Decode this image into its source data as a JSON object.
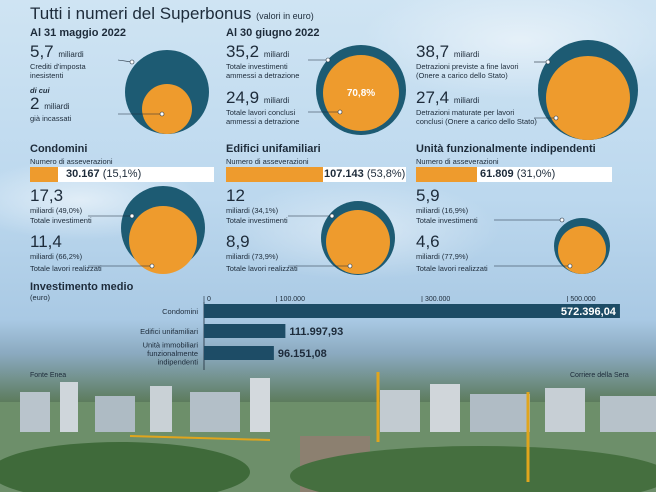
{
  "title": "Tutti i numeri del Superbonus",
  "title_note": "(valori in euro)",
  "colors": {
    "teal": "#1d5b73",
    "orange": "#ee9b2d",
    "dark_blue": "#1d4c66"
  },
  "top": {
    "may": {
      "heading": "Al 31 maggio 2022",
      "a_value": "5,7",
      "a_unit": "miliardi",
      "a_label_1": "Crediti d'imposta",
      "a_label_2": "inesistenti",
      "sub": "di cui",
      "b_value": "2",
      "b_unit": "miliardi",
      "b_label": "già incassati"
    },
    "june": {
      "heading": "Al 30 giugno 2022",
      "a_value": "35,2",
      "a_unit": "miliardi",
      "a_label_1": "Totale investimenti",
      "a_label_2": "ammessi a detrazione",
      "b_value": "24,9",
      "b_unit": "miliardi",
      "b_label_1": "Totale lavori conclusi",
      "b_label_2": "ammessi a detrazione",
      "percent": "70,8%"
    },
    "detr": {
      "a_value": "38,7",
      "a_unit": "miliardi",
      "a_label_1": "Detrazioni previste a fine lavori",
      "a_label_2": "(Onere a carico dello Stato)",
      "b_value": "27,4",
      "b_unit": "miliardi",
      "b_label_1": "Detrazioni maturate per lavori",
      "b_label_2": "conclusi (Onere a carico dello Stato)"
    }
  },
  "sections": [
    {
      "heading": "Condomini",
      "ass_label": "Numero di asseverazioni",
      "ass_value": "30.167",
      "ass_pct": "(15,1%)",
      "ass_frac": 0.151,
      "inv_value": "17,3",
      "inv_unit": "miliardi (49,0%)",
      "inv_label": "Totale investimenti",
      "lav_value": "11,4",
      "lav_unit": "miliardi (66,2%)",
      "lav_label": "Totale lavori realizzati"
    },
    {
      "heading": "Edifici unifamiliari",
      "ass_label": "Numero di asseverazioni",
      "ass_value": "107.143",
      "ass_pct": "(53,8%)",
      "ass_frac": 0.538,
      "inv_value": "12",
      "inv_unit": "miliardi (34,1%)",
      "inv_label": "Totale investimenti",
      "lav_value": "8,9",
      "lav_unit": "miliardi (73,9%)",
      "lav_label": "Totale lavori realizzati"
    },
    {
      "heading": "Unità funzionalmente indipendenti",
      "ass_label": "Numero di asseverazioni",
      "ass_value": "61.809",
      "ass_pct": "(31,0%)",
      "ass_frac": 0.31,
      "inv_value": "5,9",
      "inv_unit": "miliardi (16,9%)",
      "inv_label": "Totale investimenti",
      "lav_value": "4,6",
      "lav_unit": "miliardi (77,9%)",
      "lav_label": "Totale lavori realizzati"
    }
  ],
  "chart_data": {
    "type": "bar",
    "title": "Investimento medio",
    "ylabel": "(euro)",
    "categories": [
      "Condomini",
      "Edifici unifamiliari",
      "Unità immobiliari funzionalmente indipendenti"
    ],
    "category_lines": [
      [
        "Condomini"
      ],
      [
        "Edifici unifamiliari"
      ],
      [
        "Unità immobiliari",
        "funzionalmente",
        "indipendenti"
      ]
    ],
    "values": [
      572396.04,
      111997.93,
      96151.08
    ],
    "value_labels": [
      "572.396,04",
      "111.997,93",
      "96.151,08"
    ],
    "xlim": [
      0,
      600000
    ],
    "ticks": [
      0,
      100000,
      300000,
      500000
    ],
    "tick_labels": [
      "0",
      "100.000",
      "300.000",
      "500.000"
    ],
    "grid": false,
    "orientation": "horizontal"
  },
  "sources": {
    "left": "Fonte Enea",
    "right": "Corriere della Sera"
  }
}
